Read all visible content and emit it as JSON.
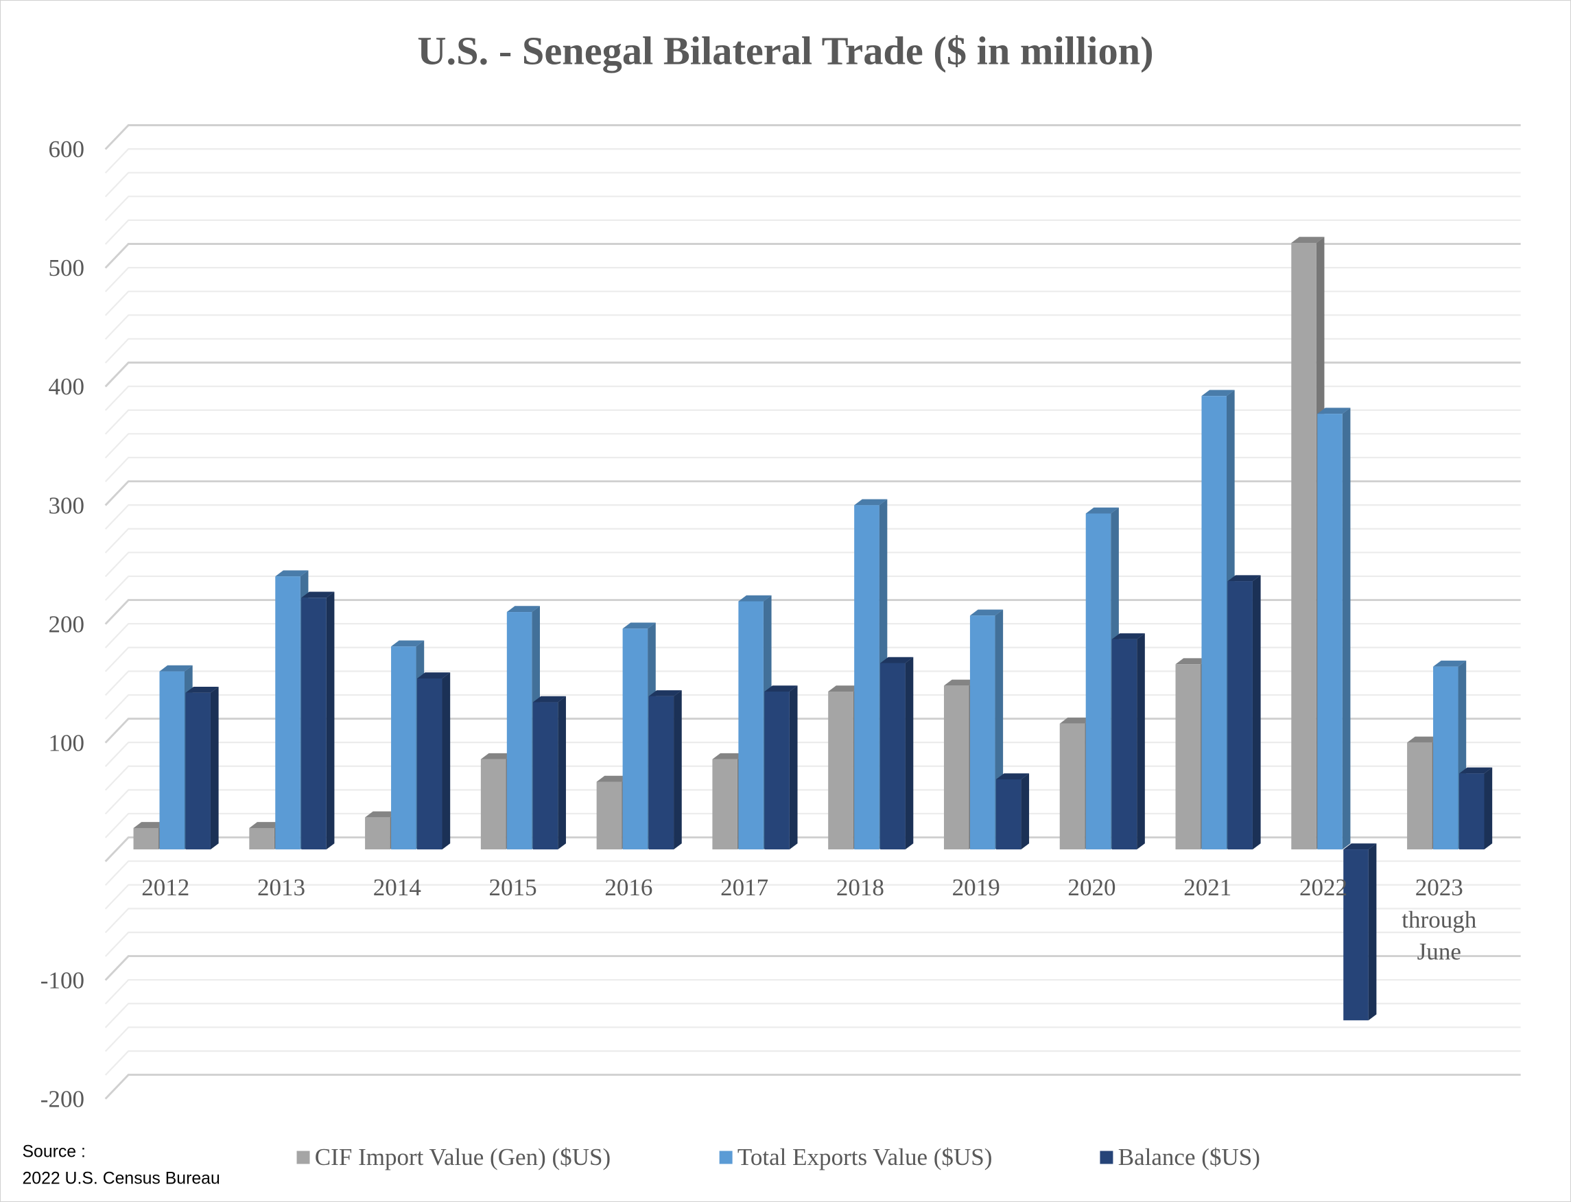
{
  "chart_data": {
    "type": "bar",
    "title": "U.S. - Senegal Bilateral Trade ($ in million)",
    "xlabel": "",
    "ylabel": "",
    "ylim": [
      -200,
      600
    ],
    "yticks": [
      "600",
      "500",
      "400",
      "300",
      "200",
      "100",
      "",
      "-100",
      "-200"
    ],
    "grid": true,
    "legend_position": "bottom",
    "categories": [
      "2012",
      "2013",
      "2014",
      "2015",
      "2016",
      "2017",
      "2018",
      "2019",
      "2020",
      "2021",
      "2022",
      "2023 through June"
    ],
    "series": [
      {
        "name": "CIF Import Value (Gen) ($US)",
        "color": "#a5a5a5",
        "values": [
          18,
          18,
          27,
          76,
          57,
          76,
          133,
          138,
          106,
          156,
          511,
          90
        ]
      },
      {
        "name": "Total Exports Value ($US)",
        "color": "#5b9bd5",
        "values": [
          150,
          230,
          171,
          200,
          186,
          209,
          290,
          197,
          283,
          382,
          367,
          154
        ]
      },
      {
        "name": "Balance ($US)",
        "color": "#264478",
        "values": [
          132,
          212,
          144,
          124,
          129,
          133,
          157,
          59,
          177,
          226,
          -144,
          64
        ]
      }
    ]
  },
  "source": {
    "label": "Source :",
    "text": "2022 U.S. Census Bureau"
  }
}
